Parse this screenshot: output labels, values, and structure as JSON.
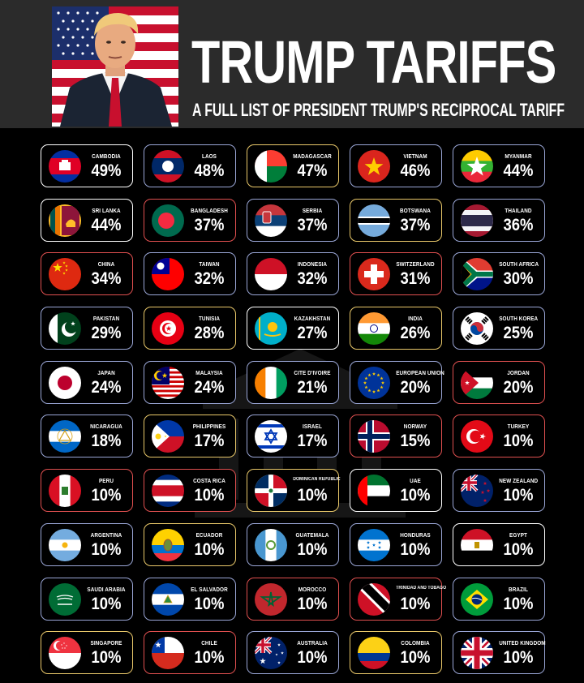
{
  "header": {
    "title": "TRUMP TARIFFS",
    "subtitle": "A FULL LIST OF PRESIDENT TRUMP'S RECIPROCAL TARIFF"
  },
  "countries": [
    {
      "name": "CAMBODIA",
      "tariff": "49%",
      "border": "#ffffff",
      "flag": "cambodia-flag-icon"
    },
    {
      "name": "LAOS",
      "tariff": "48%",
      "border": "#9aa6d6",
      "flag": "laos-flag-icon"
    },
    {
      "name": "MADAGASCAR",
      "tariff": "47%",
      "border": "#e9c86a",
      "flag": "madagascar-flag-icon"
    },
    {
      "name": "VIETNAM",
      "tariff": "46%",
      "border": "#9aa6d6",
      "flag": "vietnam-flag-icon"
    },
    {
      "name": "MYANMAR",
      "tariff": "44%",
      "border": "#9aa6d6",
      "flag": "myanmar-flag-icon"
    },
    {
      "name": "SRI LANKA",
      "tariff": "44%",
      "border": "#ffffff",
      "flag": "sri-lanka-flag-icon"
    },
    {
      "name": "BANGLADESH",
      "tariff": "37%",
      "border": "#e05050",
      "flag": "bangladesh-flag-icon"
    },
    {
      "name": "SERBIA",
      "tariff": "37%",
      "border": "#9aa6d6",
      "flag": "serbia-flag-icon"
    },
    {
      "name": "BOTSWANA",
      "tariff": "37%",
      "border": "#e9c86a",
      "flag": "botswana-flag-icon"
    },
    {
      "name": "THAILAND",
      "tariff": "36%",
      "border": "#9aa6d6",
      "flag": "thailand-flag-icon"
    },
    {
      "name": "CHINA",
      "tariff": "34%",
      "border": "#e05050",
      "flag": "china-flag-icon"
    },
    {
      "name": "TAIWAN",
      "tariff": "32%",
      "border": "#9aa6d6",
      "flag": "taiwan-flag-icon"
    },
    {
      "name": "INDONESIA",
      "tariff": "32%",
      "border": "#9aa6d6",
      "flag": "indonesia-flag-icon"
    },
    {
      "name": "SWITZERLAND",
      "tariff": "31%",
      "border": "#e05050",
      "flag": "switzerland-flag-icon"
    },
    {
      "name": "SOUTH AFRICA",
      "tariff": "30%",
      "border": "#9aa6d6",
      "flag": "south-africa-flag-icon"
    },
    {
      "name": "PAKISTAN",
      "tariff": "29%",
      "border": "#9aa6d6",
      "flag": "pakistan-flag-icon"
    },
    {
      "name": "TUNISIA",
      "tariff": "28%",
      "border": "#e9c86a",
      "flag": "tunisia-flag-icon"
    },
    {
      "name": "KAZAKHSTAN",
      "tariff": "27%",
      "border": "#ffffff",
      "flag": "kazakhstan-flag-icon"
    },
    {
      "name": "INDIA",
      "tariff": "26%",
      "border": "#e9c86a",
      "flag": "india-flag-icon"
    },
    {
      "name": "SOUTH KOREA",
      "tariff": "25%",
      "border": "#9aa6d6",
      "flag": "south-korea-flag-icon"
    },
    {
      "name": "JAPAN",
      "tariff": "24%",
      "border": "#9aa6d6",
      "flag": "japan-flag-icon"
    },
    {
      "name": "MALAYSIA",
      "tariff": "24%",
      "border": "#9aa6d6",
      "flag": "malaysia-flag-icon"
    },
    {
      "name": "CITE D'IVOIRE",
      "tariff": "21%",
      "border": "#9aa6d6",
      "flag": "ivory-coast-flag-icon"
    },
    {
      "name": "EUROPEAN UNION",
      "tariff": "20%",
      "border": "#9aa6d6",
      "flag": "european-union-flag-icon"
    },
    {
      "name": "JORDAN",
      "tariff": "20%",
      "border": "#e05050",
      "flag": "jordan-flag-icon"
    },
    {
      "name": "NICARAGUA",
      "tariff": "18%",
      "border": "#9aa6d6",
      "flag": "nicaragua-flag-icon"
    },
    {
      "name": "PHILIPPINES",
      "tariff": "17%",
      "border": "#e9c86a",
      "flag": "philippines-flag-icon"
    },
    {
      "name": "ISRAEL",
      "tariff": "17%",
      "border": "#9aa6d6",
      "flag": "israel-flag-icon"
    },
    {
      "name": "NORWAY",
      "tariff": "15%",
      "border": "#e05050",
      "flag": "norway-flag-icon"
    },
    {
      "name": "TURKEY",
      "tariff": "10%",
      "border": "#e05050",
      "flag": "turkey-flag-icon"
    },
    {
      "name": "PERU",
      "tariff": "10%",
      "border": "#e05050",
      "flag": "peru-flag-icon"
    },
    {
      "name": "COSTA RICA",
      "tariff": "10%",
      "border": "#e05050",
      "flag": "costa-rica-flag-icon"
    },
    {
      "name": "DOMINICAN REPUBLIC",
      "tariff": "10%",
      "border": "#e9c86a",
      "flag": "dominican-republic-flag-icon"
    },
    {
      "name": "UAE",
      "tariff": "10%",
      "border": "#ffffff",
      "flag": "uae-flag-icon"
    },
    {
      "name": "NEW ZEALAND",
      "tariff": "10%",
      "border": "#9aa6d6",
      "flag": "new-zealand-flag-icon"
    },
    {
      "name": "ARGENTINA",
      "tariff": "10%",
      "border": "#9aa6d6",
      "flag": "argentina-flag-icon"
    },
    {
      "name": "ECUADOR",
      "tariff": "10%",
      "border": "#e9c86a",
      "flag": "ecuador-flag-icon"
    },
    {
      "name": "GUATEMALA",
      "tariff": "10%",
      "border": "#9aa6d6",
      "flag": "guatemala-flag-icon"
    },
    {
      "name": "HONDURAS",
      "tariff": "10%",
      "border": "#9aa6d6",
      "flag": "honduras-flag-icon"
    },
    {
      "name": "EGYPT",
      "tariff": "10%",
      "border": "#ffffff",
      "flag": "egypt-flag-icon"
    },
    {
      "name": "SAUDI ARABIA",
      "tariff": "10%",
      "border": "#9aa6d6",
      "flag": "saudi-arabia-flag-icon"
    },
    {
      "name": "EL SALVADOR",
      "tariff": "10%",
      "border": "#9aa6d6",
      "flag": "el-salvador-flag-icon"
    },
    {
      "name": "MOROCCO",
      "tariff": "10%",
      "border": "#e05050",
      "flag": "morocco-flag-icon"
    },
    {
      "name": "TRINIDAD AND TOBAGO",
      "tariff": "10%",
      "border": "#e05050",
      "flag": "trinidad-and-tobago-flag-icon"
    },
    {
      "name": "BRAZIL",
      "tariff": "10%",
      "border": "#9aa6d6",
      "flag": "brazil-flag-icon"
    },
    {
      "name": "SINGAPORE",
      "tariff": "10%",
      "border": "#e9c86a",
      "flag": "singapore-flag-icon"
    },
    {
      "name": "CHILE",
      "tariff": "10%",
      "border": "#e05050",
      "flag": "chile-flag-icon"
    },
    {
      "name": "AUSTRALIA",
      "tariff": "10%",
      "border": "#9aa6d6",
      "flag": "australia-flag-icon"
    },
    {
      "name": "COLOMBIA",
      "tariff": "10%",
      "border": "#e9c86a",
      "flag": "colombia-flag-icon"
    },
    {
      "name": "UNITED KINGDOM",
      "tariff": "10%",
      "border": "#9aa6d6",
      "flag": "united-kingdom-flag-icon"
    }
  ]
}
